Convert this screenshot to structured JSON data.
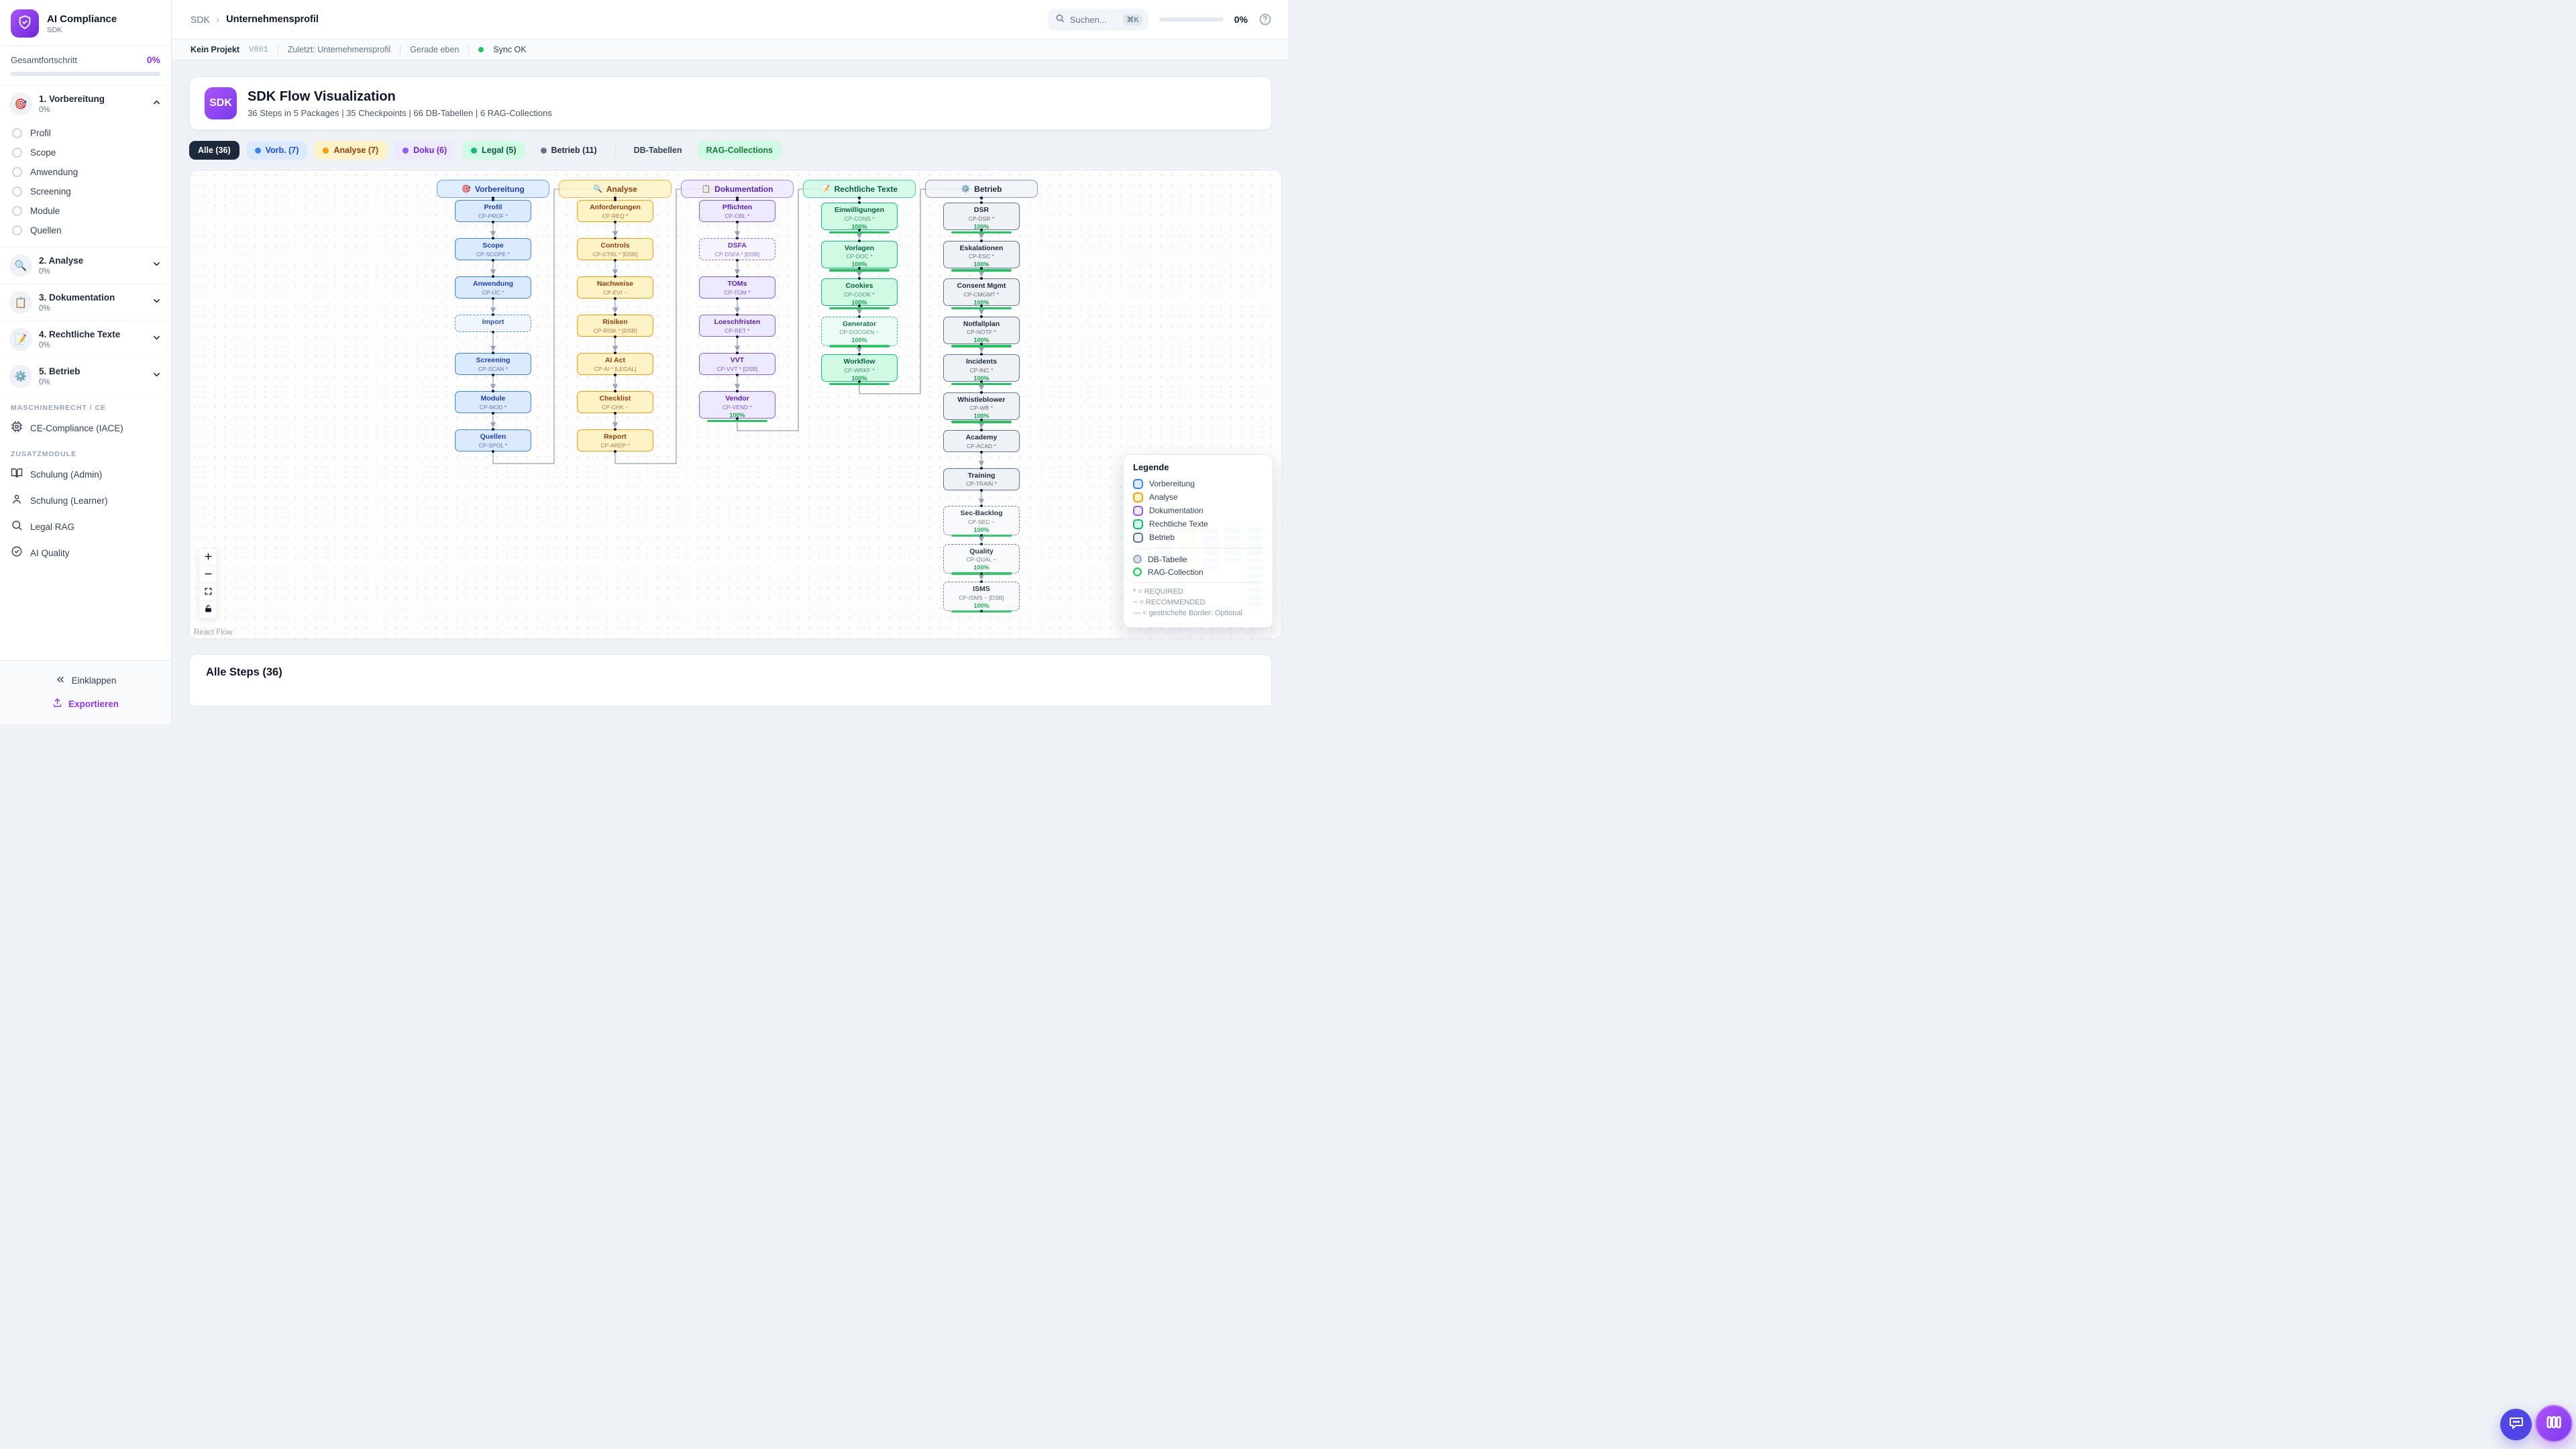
{
  "app": {
    "title": "AI Compliance",
    "subtitle": "SDK"
  },
  "sidebar": {
    "overall": {
      "label": "Gesamtfortschritt",
      "value": "0%"
    },
    "sections": [
      {
        "emoji": "🎯",
        "label": "1. Vorbereitung",
        "progress": "0%",
        "expanded": true,
        "items": [
          "Profil",
          "Scope",
          "Anwendung",
          "Screening",
          "Module",
          "Quellen"
        ]
      },
      {
        "emoji": "🔍",
        "label": "2. Analyse",
        "progress": "0%",
        "expanded": false,
        "items": []
      },
      {
        "emoji": "📋",
        "label": "3. Dokumentation",
        "progress": "0%",
        "expanded": false,
        "items": []
      },
      {
        "emoji": "📝",
        "label": "4. Rechtliche Texte",
        "progress": "0%",
        "expanded": false,
        "items": []
      },
      {
        "emoji": "⚙️",
        "label": "5. Betrieb",
        "progress": "0%",
        "expanded": false,
        "items": []
      }
    ],
    "groups": [
      {
        "header": "MASCHINENRECHT / CE",
        "items": [
          {
            "icon": "cpu",
            "label": "CE-Compliance (IACE)"
          }
        ]
      },
      {
        "header": "ZUSATZMODULE",
        "items": [
          {
            "icon": "book",
            "label": "Schulung (Admin)"
          },
          {
            "icon": "user",
            "label": "Schulung (Learner)"
          },
          {
            "icon": "search",
            "label": "Legal RAG"
          },
          {
            "icon": "check",
            "label": "AI Quality"
          }
        ]
      }
    ],
    "collapse_label": "Einklappen",
    "export_label": "Exportieren"
  },
  "header": {
    "breadcrumb_root": "SDK",
    "breadcrumb_leaf": "Unternehmensprofil",
    "search_placeholder": "Suchen...",
    "search_kbd": "⌘K",
    "progress": "0%"
  },
  "statusbar": {
    "project": "Kein Projekt",
    "version": "V001",
    "last": "Zuletzt: Unternehmensprofil",
    "time": "Gerade eben",
    "sync": "Sync OK"
  },
  "flow_card": {
    "badge": "SDK",
    "title": "SDK Flow Visualization",
    "subtitle": "36 Steps in 5 Packages | 35 Checkpoints | 66 DB-Tabellen | 6 RAG-Collections"
  },
  "filters": [
    {
      "label": "Alle (36)",
      "active": true
    },
    {
      "label": "Vorb. (7)",
      "dot": "#3b82f6",
      "bg": "#dbeafe",
      "text": "#1d4ed8"
    },
    {
      "label": "Analyse (7)",
      "dot": "#f59e0b",
      "bg": "#fef3c7",
      "text": "#92400e"
    },
    {
      "label": "Doku (6)",
      "dot": "#8b5cf6",
      "bg": "#ede9fe",
      "text": "#6d28d9"
    },
    {
      "label": "Legal (5)",
      "dot": "#10b981",
      "bg": "#d1fae5",
      "text": "#065f46"
    },
    {
      "label": "Betrieb (11)",
      "dot": "#64748b",
      "bg": "#eef2f6",
      "text": "#1e293b"
    },
    {
      "divider": true
    },
    {
      "label": "DB-Tabellen",
      "bg": "#eef2f6",
      "text": "#334155"
    },
    {
      "label": "RAG-Collections",
      "bg": "#d1fae5",
      "text": "#15803d"
    }
  ],
  "colors": {
    "blue": {
      "border": "#3b82f6",
      "bg": "#dbeafe",
      "dashedBg": "#eff6ff",
      "text": "#1e40af"
    },
    "amber": {
      "border": "#f59e0b",
      "bg": "#fef3c7",
      "dashedBg": "#fffbeb",
      "text": "#92400e"
    },
    "purple": {
      "border": "#8b5cf6",
      "bg": "#ede9fe",
      "dashedBg": "#f5f3ff",
      "text": "#5b21b6"
    },
    "green": {
      "border": "#10b981",
      "bg": "#d1fae5",
      "dashedBg": "#ecfdf5",
      "text": "#065f46"
    },
    "slate": {
      "border": "#64748b",
      "bg": "#eef2f7",
      "dashedBg": "#f8fafc",
      "text": "#1e293b"
    },
    "progress": "#22c55e",
    "edge": "#94a3b8",
    "accent": "#9333ea"
  },
  "flow": {
    "columns": [
      {
        "id": "vorbereitung",
        "label": "Vorbereitung",
        "emoji": "🎯",
        "color": "blue",
        "nodes": [
          {
            "title": "Profil",
            "code": "CP-PROF *"
          },
          {
            "title": "Scope",
            "code": "CP-SCOPE *"
          },
          {
            "title": "Anwendung",
            "code": "CP-UC *"
          },
          {
            "title": "Import",
            "dashed": true
          },
          {
            "title": "Screening",
            "code": "CP-SCAN *"
          },
          {
            "title": "Module",
            "code": "CP-MOD *"
          },
          {
            "title": "Quellen",
            "code": "CP-SPOL *"
          }
        ]
      },
      {
        "id": "analyse",
        "label": "Analyse",
        "emoji": "🔍",
        "color": "amber",
        "nodes": [
          {
            "title": "Anforderungen",
            "code": "CP-REQ *"
          },
          {
            "title": "Controls",
            "code": "CP-CTRL * [DSB]"
          },
          {
            "title": "Nachweise",
            "code": "CP-EVI ~"
          },
          {
            "title": "Risiken",
            "code": "CP-RISK * [DSB]"
          },
          {
            "title": "AI Act",
            "code": "CP-AI * [LEGAL]"
          },
          {
            "title": "Checklist",
            "code": "CP-CHK ~"
          },
          {
            "title": "Report",
            "code": "CP-AREP *"
          }
        ]
      },
      {
        "id": "dokumentation",
        "label": "Dokumentation",
        "emoji": "📋",
        "color": "purple",
        "nodes": [
          {
            "title": "Pflichten",
            "code": "CP-OBL *"
          },
          {
            "title": "DSFA",
            "code": "CP-DSFA * [DSB]",
            "dashed": true
          },
          {
            "title": "TOMs",
            "code": "CP-TOM *"
          },
          {
            "title": "Loeschfristen",
            "code": "CP-RET *"
          },
          {
            "title": "VVT",
            "code": "CP-VVT * [DSB]"
          },
          {
            "title": "Vendor",
            "code": "CP-VEND *",
            "progress": "100%"
          }
        ]
      },
      {
        "id": "rechtliche-texte",
        "label": "Rechtliche Texte",
        "emoji": "📝",
        "color": "green",
        "nodes": [
          {
            "title": "Einwilligungen",
            "code": "CP-CONS *",
            "progress": "100%"
          },
          {
            "title": "Vorlagen",
            "code": "CP-DOC *",
            "progress": "100%"
          },
          {
            "title": "Cookies",
            "code": "CP-COOK *",
            "progress": "100%"
          },
          {
            "title": "Generator",
            "code": "CP-DOCGEN ~",
            "progress": "100%",
            "dashed": true
          },
          {
            "title": "Workflow",
            "code": "CP-WRKF *",
            "progress": "100%"
          }
        ]
      },
      {
        "id": "betrieb",
        "label": "Betrieb",
        "emoji": "⚙️",
        "color": "slate",
        "nodes": [
          {
            "title": "DSR",
            "code": "CP-DSR *",
            "progress": "100%"
          },
          {
            "title": "Eskalationen",
            "code": "CP-ESC *",
            "progress": "100%"
          },
          {
            "title": "Consent Mgmt",
            "code": "CP-CMGMT *",
            "progress": "100%"
          },
          {
            "title": "Notfallplan",
            "code": "CP-NOTF *",
            "progress": "100%"
          },
          {
            "title": "Incidents",
            "code": "CP-INC *",
            "progress": "100%"
          },
          {
            "title": "Whistleblower",
            "code": "CP-WB *",
            "progress": "100%"
          },
          {
            "title": "Academy",
            "code": "CP-ACAD *"
          },
          {
            "title": "Training",
            "code": "CP-TRAIN *"
          },
          {
            "title": "Sec-Backlog",
            "code": "CP-SEC ~",
            "progress": "100%",
            "dashed": true
          },
          {
            "title": "Quality",
            "code": "CP-QUAL ~",
            "progress": "100%",
            "dashed": true
          },
          {
            "title": "ISMS",
            "code": "CP-ISMS ~ [DSB]",
            "progress": "100%",
            "dashed": true
          }
        ]
      }
    ]
  },
  "legend": {
    "title": "Legende",
    "packages": [
      {
        "label": "Vorbereitung",
        "color": "blue"
      },
      {
        "label": "Analyse",
        "color": "amber"
      },
      {
        "label": "Dokumentation",
        "color": "purple"
      },
      {
        "label": "Rechtliche Texte",
        "color": "green"
      },
      {
        "label": "Betrieb",
        "color": "slate"
      }
    ],
    "shapes": [
      {
        "label": "DB-Tabelle",
        "border": "#94a3b8",
        "fill": "#dbe2ea"
      },
      {
        "label": "RAG-Collection",
        "border": "#22c55e",
        "fill": "#dcfce7"
      }
    ],
    "notes": [
      "* = REQUIRED",
      "~ = RECOMMENDED",
      "--- = gestrichelte Border: Optional"
    ]
  },
  "canvas_controls": [
    "zoom-in",
    "zoom-out",
    "fit-view",
    "lock"
  ],
  "attribution": "React Flow",
  "steps_panel": {
    "title": "Alle Steps (36)"
  }
}
